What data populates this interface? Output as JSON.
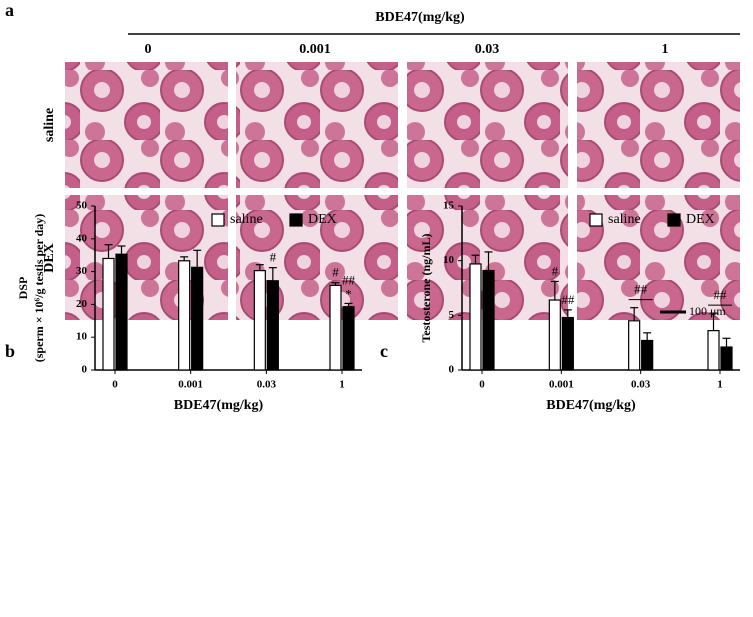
{
  "figure_a": {
    "panel_label": "a",
    "axis_title": "BDE47(mg/kg)",
    "columns": [
      "0",
      "0.001",
      "0.03",
      "1"
    ],
    "rows": [
      "saline",
      "DEX"
    ],
    "scale_bar": "100 μm"
  },
  "chart_data": [
    {
      "type": "bar",
      "panel_label": "b",
      "x_label": "BDE47(mg/kg)",
      "y_label": [
        "DSP",
        "(sperm × 10⁶/g testis per day)"
      ],
      "categories": [
        "0",
        "0.001",
        "0.03",
        "1"
      ],
      "series": [
        {
          "name": "saline",
          "color": "#ffffff",
          "values": [
            34,
            33.3,
            30.3,
            25.8
          ],
          "errors": [
            4.2,
            1.2,
            1.8,
            0.8
          ]
        },
        {
          "name": "DEX",
          "color": "#000000",
          "values": [
            35.3,
            31.3,
            27.2,
            19.3
          ],
          "errors": [
            2.5,
            5.2,
            4.0,
            1.0
          ]
        }
      ],
      "ylim": [
        0,
        50
      ],
      "yticks": [
        0,
        10,
        20,
        30,
        40,
        50
      ],
      "legend": "upper right",
      "annotations": [
        "#",
        "#",
        "##",
        "*"
      ]
    },
    {
      "type": "bar",
      "panel_label": "c",
      "x_label": "BDE47(mg/kg)",
      "y_label": [
        "Testosterone (ng/mL)"
      ],
      "categories": [
        "0",
        "0.001",
        "0.03",
        "1"
      ],
      "series": [
        {
          "name": "saline",
          "color": "#ffffff",
          "values": [
            9.7,
            6.4,
            4.5,
            3.6
          ],
          "errors": [
            0.8,
            1.7,
            1.2,
            1.6
          ]
        },
        {
          "name": "DEX",
          "color": "#000000",
          "values": [
            9.1,
            4.8,
            2.7,
            2.1
          ],
          "errors": [
            1.7,
            0.7,
            0.7,
            0.8
          ]
        }
      ],
      "ylim": [
        0,
        15
      ],
      "yticks": [
        0,
        5,
        10,
        15
      ],
      "legend": "upper right",
      "annotations": [
        "#",
        "##",
        "##",
        "##"
      ]
    }
  ]
}
